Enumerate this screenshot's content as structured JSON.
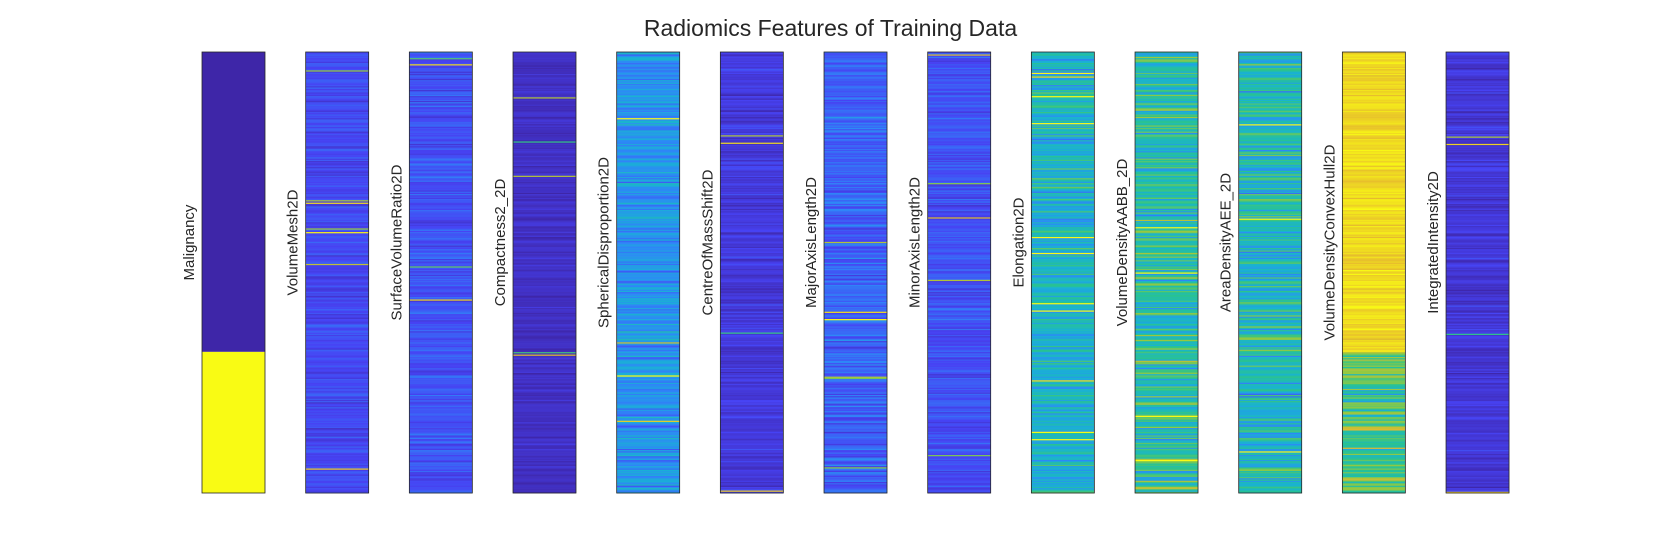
{
  "chart_data": {
    "type": "heatmap",
    "title": "Radiomics Features of Training Data",
    "colormap": [
      "#3e26a8",
      "#4743f4",
      "#2e87f7",
      "#19b2d3",
      "#29c38f",
      "#95c940",
      "#e5b82f",
      "#f9fb14"
    ],
    "colorbar_range": [
      0,
      1
    ],
    "n_samples": 360,
    "features": [
      {
        "name": "Malignancy",
        "pattern": "binary",
        "class_split": 0.68
      },
      {
        "name": "VolumeMesh2D",
        "pattern": "low",
        "mean": 0.15,
        "spread": 0.06
      },
      {
        "name": "SurfaceVolumeRatio2D",
        "pattern": "low",
        "mean": 0.17,
        "spread": 0.07
      },
      {
        "name": "Compactness2_2D",
        "pattern": "low",
        "mean": 0.05,
        "spread": 0.04
      },
      {
        "name": "SphericalDisproportion2D",
        "pattern": "mid",
        "mean": 0.33,
        "spread": 0.12
      },
      {
        "name": "CentreOfMassShift2D",
        "pattern": "low",
        "mean": 0.1,
        "spread": 0.06
      },
      {
        "name": "MajorAxisLength2D",
        "pattern": "low",
        "mean": 0.2,
        "spread": 0.09
      },
      {
        "name": "MinorAxisLength2D",
        "pattern": "low",
        "mean": 0.17,
        "spread": 0.07
      },
      {
        "name": "Elongation2D",
        "pattern": "mid",
        "mean": 0.45,
        "spread": 0.15
      },
      {
        "name": "VolumeDensityAABB_2D",
        "pattern": "mid",
        "mean": 0.52,
        "spread": 0.2
      },
      {
        "name": "AreaDensityAEE_2D",
        "pattern": "mid",
        "mean": 0.48,
        "spread": 0.18
      },
      {
        "name": "VolumeDensityConvexHull2D",
        "pattern": "high",
        "mean": 0.93,
        "spread": 0.06
      },
      {
        "name": "IntegratedIntensity2D",
        "pattern": "low",
        "mean": 0.09,
        "spread": 0.06
      }
    ]
  }
}
